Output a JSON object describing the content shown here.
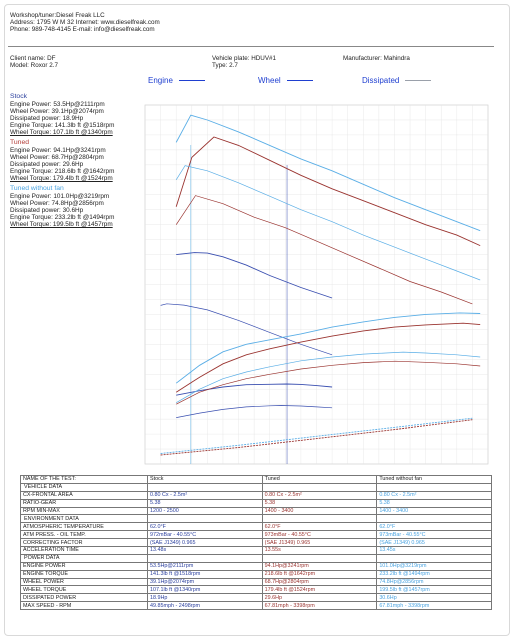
{
  "header": {
    "line1": "Workshop/tuner:Diesel Freak LLC",
    "line2": "Address: 1795 W M 32 Internet: www.dieselfreak.com",
    "line3": "Phone: 989-748-4145 E-mail: info@dieselfreak.com"
  },
  "vehicle": {
    "client": "Client name: DF",
    "model": "Model: Roxor 2.7",
    "plate": "Vehicle plate: HDUV#1",
    "type": "Type: 2.7",
    "manufacturer": "Manufacturer: Mahindra"
  },
  "legend_top": {
    "engine": "Engine",
    "wheel": "Wheel",
    "dissipated": "Dissipated",
    "engine_color": "#1f3fd0",
    "wheel_color": "#1f3fd0",
    "dissipated_color": "#9aa0aa"
  },
  "colors": {
    "stock": "#3a4fb0",
    "tuned": "#9a3430",
    "nofan": "#5aaee6",
    "stock_label": "#2a3f9d",
    "tuned_label": "#b23a35",
    "nofan_label": "#4aa3e0",
    "grid": "#e3e3e3"
  },
  "summary": [
    {
      "title": "Stock",
      "lines": [
        "Engine Power: 53.5Hp@2111rpm",
        "Wheel Power: 39.1Hp@2074rpm",
        "Dissipated power: 18.9Hp",
        "Engine Torque: 141.3lb ft @1518rpm",
        "Wheel Torque: 107.1lb ft @1340rpm"
      ]
    },
    {
      "title": "Tuned",
      "lines": [
        "Engine Power: 94.1Hp@3241rpm",
        "Wheel Power: 68.7Hp@2804rpm",
        "Dissipated power: 29.6Hp",
        "Engine Torque: 218.6lb ft @1642rpm",
        "Wheel Torque: 179.4lb ft @1524rpm"
      ]
    },
    {
      "title": "Tuned without fan",
      "lines": [
        "Engine Power: 101.0Hp@3219rpm",
        "Wheel Power: 74.8Hp@2856rpm",
        "Dissipated power: 30.6Hp",
        "Engine Torque: 233.2lb ft @1494rpm",
        "Wheel Torque: 199.5lb ft @1457rpm"
      ]
    }
  ],
  "chart_data": {
    "type": "line",
    "title": "",
    "xlabel": "",
    "ylabel": "",
    "xlim": [
      1200,
      3400
    ],
    "ylim": [
      0,
      240
    ],
    "grid": true,
    "series": [
      {
        "name": "Stock",
        "kind": "engine_power",
        "x": [
          1400,
          1550,
          1700,
          1850,
          2000,
          2111,
          2200,
          2300,
          2400
        ],
        "y": [
          46,
          49,
          51.5,
          53,
          53.3,
          53.5,
          53.2,
          52.4,
          51.5
        ]
      },
      {
        "name": "Stock",
        "kind": "wheel_power",
        "x": [
          1400,
          1550,
          1700,
          1850,
          2000,
          2074,
          2200,
          2300,
          2400
        ],
        "y": [
          31,
          34,
          36.5,
          38.2,
          38.9,
          39.1,
          38.8,
          38.2,
          37.6
        ]
      },
      {
        "name": "Stock",
        "kind": "engine_torque",
        "x": [
          1400,
          1518,
          1600,
          1700,
          1850,
          2000,
          2200,
          2400
        ],
        "y": [
          140,
          141.3,
          141,
          138.5,
          133,
          126,
          118,
          111
        ]
      },
      {
        "name": "Stock",
        "kind": "wheel_torque",
        "x": [
          1300,
          1340,
          1450,
          1600,
          1800,
          2000,
          2200,
          2400
        ],
        "y": [
          106,
          107.1,
          106.2,
          103,
          96,
          88,
          80,
          73
        ]
      },
      {
        "name": "Tuned",
        "kind": "engine_power",
        "x": [
          1400,
          1550,
          1700,
          1850,
          2000,
          2200,
          2400,
          2600,
          2800,
          3000,
          3241,
          3350
        ],
        "y": [
          48,
          58,
          67,
          73,
          77,
          81.5,
          85.5,
          89,
          91.5,
          93,
          94.1,
          93.2
        ]
      },
      {
        "name": "Tuned",
        "kind": "wheel_power",
        "x": [
          1400,
          1550,
          1700,
          1850,
          2000,
          2200,
          2400,
          2600,
          2804,
          3000,
          3200,
          3350
        ],
        "y": [
          40,
          48,
          53,
          57,
          60,
          63.5,
          66,
          67.8,
          68.7,
          68,
          67,
          65.5
        ]
      },
      {
        "name": "Tuned",
        "kind": "engine_torque",
        "x": [
          1400,
          1500,
          1642,
          1800,
          2000,
          2200,
          2400,
          2600,
          2800,
          3000,
          3200,
          3350
        ],
        "y": [
          172,
          205,
          218.6,
          213,
          203,
          193,
          184,
          176,
          168,
          160,
          153,
          146
        ]
      },
      {
        "name": "Tuned",
        "kind": "wheel_torque",
        "x": [
          1400,
          1524,
          1700,
          1900,
          2100,
          2300,
          2500,
          2700,
          2900,
          3100,
          3300
        ],
        "y": [
          160,
          179.4,
          174,
          165,
          158,
          149,
          140,
          131,
          122,
          115,
          107
        ]
      },
      {
        "name": "Tuned",
        "kind": "dissipated",
        "x": [
          1300,
          1800,
          2300,
          2800,
          3300
        ],
        "y": [
          6,
          11,
          17,
          23,
          29.6
        ]
      },
      {
        "name": "Tuned without fan",
        "kind": "engine_power",
        "x": [
          1400,
          1550,
          1700,
          1850,
          2000,
          2200,
          2400,
          2600,
          2800,
          3000,
          3219,
          3350
        ],
        "y": [
          54,
          66,
          75,
          80,
          83,
          87,
          91.5,
          95,
          98,
          100,
          101,
          100.6
        ]
      },
      {
        "name": "Tuned without fan",
        "kind": "wheel_power",
        "x": [
          1400,
          1550,
          1700,
          1850,
          2000,
          2200,
          2400,
          2600,
          2856,
          3000,
          3200,
          3350
        ],
        "y": [
          41,
          50,
          57,
          61.5,
          65,
          69,
          71.5,
          73.5,
          74.8,
          74.2,
          73,
          71.5
        ]
      },
      {
        "name": "Tuned without fan",
        "kind": "engine_torque",
        "x": [
          1400,
          1494,
          1600,
          1800,
          2000,
          2200,
          2400,
          2600,
          2800,
          3000,
          3200,
          3350
        ],
        "y": [
          215,
          233.2,
          230,
          222,
          213,
          204,
          196,
          187,
          178,
          170,
          162,
          156
        ]
      },
      {
        "name": "Tuned without fan",
        "kind": "wheel_torque",
        "x": [
          1400,
          1457,
          1600,
          1800,
          2000,
          2200,
          2400,
          2600,
          2800,
          3000,
          3200,
          3350
        ],
        "y": [
          190,
          199.5,
          196,
          188,
          179,
          170,
          162,
          153,
          145,
          137,
          129,
          123
        ]
      },
      {
        "name": "Tuned without fan",
        "kind": "dissipated",
        "x": [
          1300,
          1800,
          2300,
          2800,
          3300
        ],
        "y": [
          7,
          12.5,
          18.5,
          24.5,
          30.6
        ]
      }
    ]
  },
  "table": {
    "rows": [
      {
        "k": "head",
        "c": [
          "NAME OF THE TEST:",
          "Stock",
          "Tuned",
          "Tuned without fan"
        ]
      },
      {
        "k": "sect",
        "c": [
          "VEHICLE DATA",
          "",
          "",
          ""
        ]
      },
      {
        "k": "row",
        "c": [
          "CX-FRONTAL AREA",
          "0.80 Cx - 2.5m²",
          "0.80 Cx - 2.5m²",
          "0.80 Cx - 2.5m²"
        ]
      },
      {
        "k": "row",
        "c": [
          "RATIO-GEAR",
          "5.38",
          "5.38",
          "5.38"
        ]
      },
      {
        "k": "row",
        "c": [
          "RPM MIN-MAX",
          "1200 - 2500",
          "1400 - 3400",
          "1400 - 3400"
        ]
      },
      {
        "k": "sect",
        "c": [
          "ENVIRONMENT DATA",
          "",
          "",
          ""
        ]
      },
      {
        "k": "row",
        "c": [
          "ATMOSPHERIC TEMPERATURE",
          "62.0°F",
          "62.0°F",
          "62.0°F"
        ]
      },
      {
        "k": "row",
        "c": [
          "ATM PRESS. - OIL TEMP.",
          "972mBar - 40.55°C",
          "973mBar - 40.55°C",
          "973mBar - 40.55°C"
        ]
      },
      {
        "k": "row",
        "c": [
          "CORRECTING FACTOR",
          "(SAE J1349) 0.965",
          "(SAE J1349) 0.965",
          "(SAE J1349) 0.965"
        ]
      },
      {
        "k": "row",
        "c": [
          "ACCELERATION TIME",
          "13.48s",
          "13.55s",
          "13.45s"
        ]
      },
      {
        "k": "sect",
        "c": [
          "POWER DATA",
          "",
          "",
          ""
        ]
      },
      {
        "k": "row",
        "c": [
          "ENGINE POWER",
          "53.5Hp@2111rpm",
          "94.1Hp@3241rpm",
          "101.0Hp@3219rpm"
        ]
      },
      {
        "k": "row",
        "c": [
          "ENGINE TORQUE",
          "141.3lb ft @1518rpm",
          "218.6lb ft @1642rpm",
          "233.2lb ft @1494rpm"
        ]
      },
      {
        "k": "row",
        "c": [
          "WHEEL POWER",
          "39.1Hp@2074rpm",
          "68.7Hp@2804rpm",
          "74.8Hp@2856rpm"
        ]
      },
      {
        "k": "row",
        "c": [
          "WHEEL TORQUE",
          "107.1lb ft @1340rpm",
          "179.4lb ft @1524rpm",
          "199.5lb ft @1457rpm"
        ]
      },
      {
        "k": "row",
        "c": [
          "DISSIPATED POWER",
          "18.9Hp",
          "29.6Hp",
          "30.6Hp"
        ]
      },
      {
        "k": "row",
        "c": [
          "MAX SPEED - RPM",
          "49.85mph - 2498rpm",
          "67.81mph - 3398rpm",
          "67.81mph - 3398rpm"
        ]
      }
    ]
  }
}
